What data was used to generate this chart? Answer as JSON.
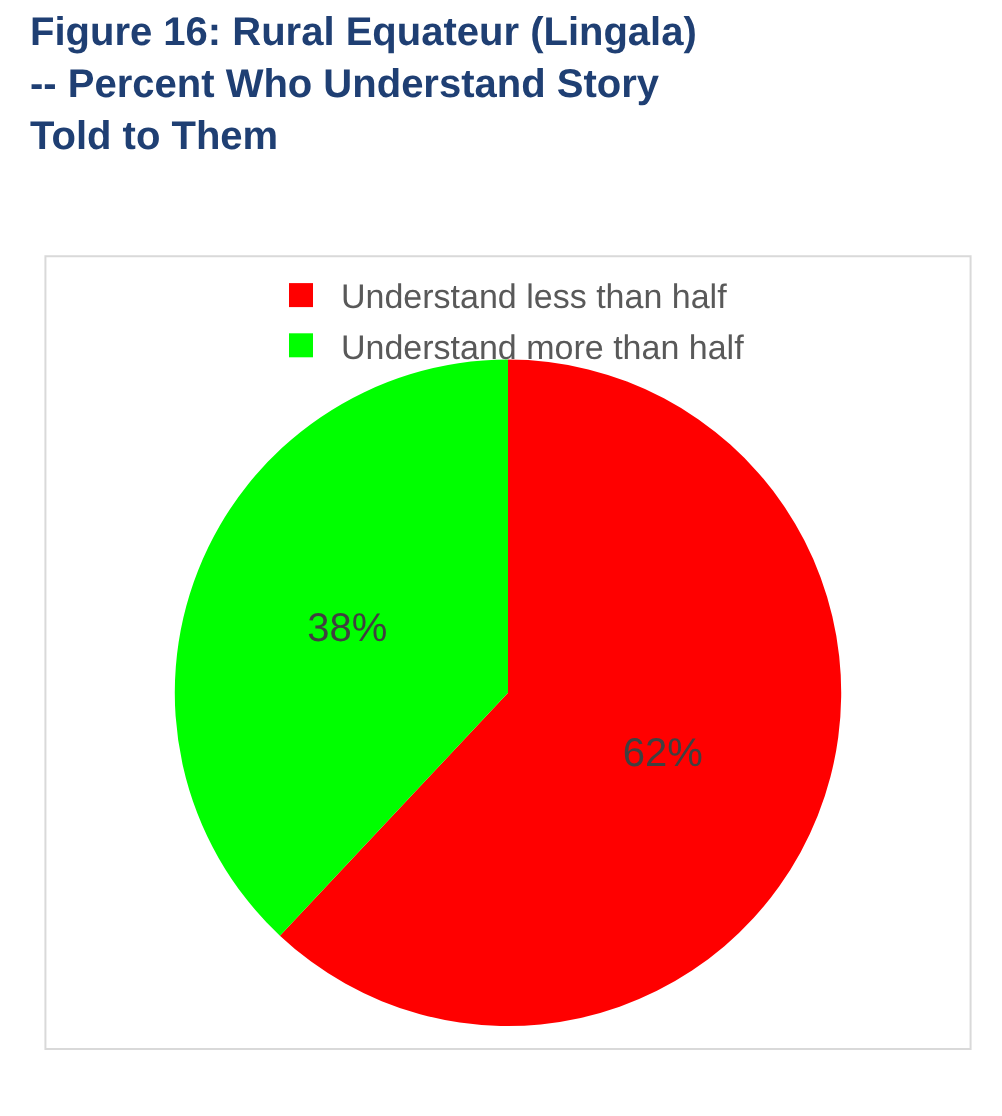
{
  "chart_data": {
    "type": "pie",
    "title": "Figure 16: Rural Equateur (Lingala)\n-- Percent Who Understand Story\nTold to Them",
    "categories": [
      "Understand less than half",
      "Understand more than half"
    ],
    "values": [
      62,
      38
    ],
    "colors": [
      "#ff0000",
      "#00ff00"
    ],
    "value_labels": [
      "62%",
      "38%"
    ],
    "legend": "top"
  }
}
